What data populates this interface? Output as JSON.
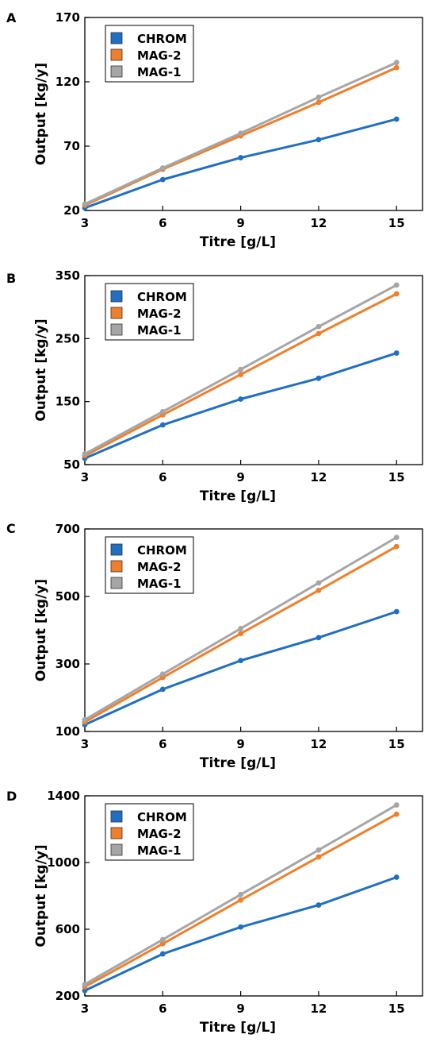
{
  "chart_data": [
    {
      "type": "line",
      "panel": "A",
      "x": [
        3,
        6,
        9,
        12,
        15
      ],
      "xlabel": "Titre [g/L]",
      "ylabel": "Output [kg/y]",
      "xticks": [
        "3",
        "6",
        "9",
        "12",
        "15"
      ],
      "yticks": [
        "20",
        "70",
        "120",
        "170"
      ],
      "xlim": [
        3,
        16
      ],
      "ylim": [
        20,
        170
      ],
      "grid": false,
      "legend_position": "top-left",
      "series": [
        {
          "name": "CHROM",
          "color": "#1f6fc5",
          "values": [
            22,
            44,
            61,
            75,
            91
          ]
        },
        {
          "name": "MAG-2",
          "color": "#f07f2a",
          "values": [
            24,
            52,
            78,
            104,
            131
          ]
        },
        {
          "name": "MAG-1",
          "color": "#a6a6a6",
          "values": [
            25,
            53,
            80,
            108,
            135
          ]
        }
      ]
    },
    {
      "type": "line",
      "panel": "B",
      "x": [
        3,
        6,
        9,
        12,
        15
      ],
      "xlabel": "Titre [g/L]",
      "ylabel": "Output [kg/y]",
      "xticks": [
        "3",
        "6",
        "9",
        "12",
        "15"
      ],
      "yticks": [
        "50",
        "150",
        "250",
        "350"
      ],
      "xlim": [
        3,
        16
      ],
      "ylim": [
        50,
        350
      ],
      "grid": false,
      "legend_position": "top-left",
      "series": [
        {
          "name": "CHROM",
          "color": "#1f6fc5",
          "values": [
            60,
            113,
            154,
            187,
            227
          ]
        },
        {
          "name": "MAG-2",
          "color": "#f07f2a",
          "values": [
            64,
            129,
            193,
            258,
            321
          ]
        },
        {
          "name": "MAG-1",
          "color": "#a6a6a6",
          "values": [
            67,
            134,
            201,
            269,
            335
          ]
        }
      ]
    },
    {
      "type": "line",
      "panel": "C",
      "x": [
        3,
        6,
        9,
        12,
        15
      ],
      "xlabel": "Titre [g/L]",
      "ylabel": "Output [kg/y]",
      "xticks": [
        "3",
        "6",
        "9",
        "12",
        "15"
      ],
      "yticks": [
        "100",
        "300",
        "500",
        "700"
      ],
      "xlim": [
        3,
        16
      ],
      "ylim": [
        100,
        700
      ],
      "grid": false,
      "legend_position": "top-left",
      "series": [
        {
          "name": "CHROM",
          "color": "#1f6fc5",
          "values": [
            120,
            225,
            310,
            378,
            455
          ]
        },
        {
          "name": "MAG-2",
          "color": "#f07f2a",
          "values": [
            128,
            260,
            390,
            518,
            648
          ]
        },
        {
          "name": "MAG-1",
          "color": "#a6a6a6",
          "values": [
            135,
            270,
            405,
            540,
            675
          ]
        }
      ]
    },
    {
      "type": "line",
      "panel": "D",
      "x": [
        3,
        6,
        9,
        12,
        15
      ],
      "xlabel": "Titre [g/L]",
      "ylabel": "Output [kg/y]",
      "xticks": [
        "3",
        "6",
        "9",
        "12",
        "15"
      ],
      "yticks": [
        "200",
        "600",
        "1000",
        "1400"
      ],
      "xlim": [
        3,
        16
      ],
      "ylim": [
        200,
        1400
      ],
      "grid": false,
      "legend_position": "top-left",
      "series": [
        {
          "name": "CHROM",
          "color": "#1f6fc5",
          "values": [
            232,
            452,
            613,
            745,
            912
          ]
        },
        {
          "name": "MAG-2",
          "color": "#f07f2a",
          "values": [
            255,
            513,
            775,
            1033,
            1290
          ]
        },
        {
          "name": "MAG-1",
          "color": "#a6a6a6",
          "values": [
            270,
            538,
            808,
            1075,
            1345
          ]
        }
      ]
    }
  ]
}
